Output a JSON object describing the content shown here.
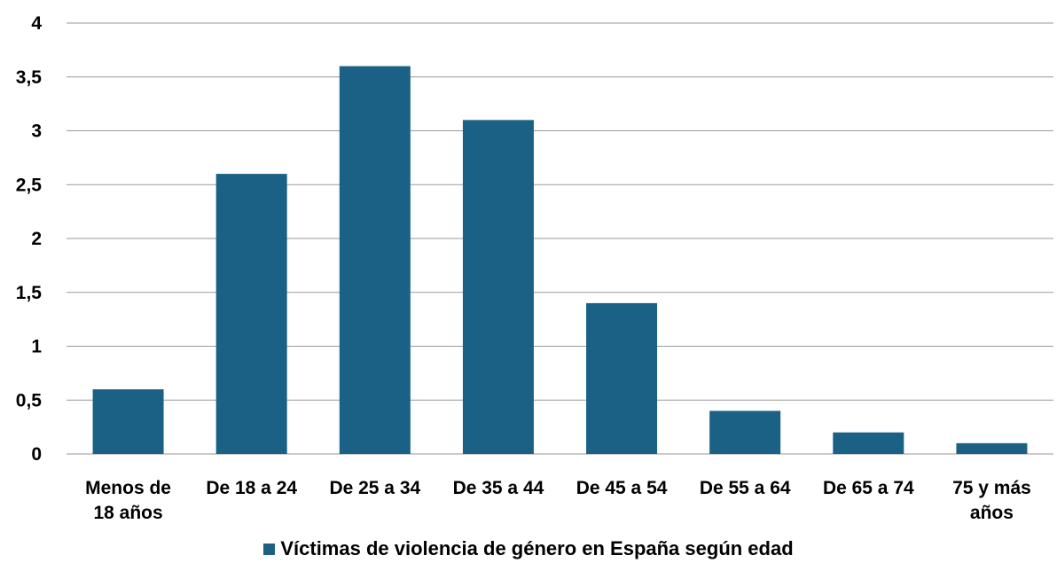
{
  "chart_data": {
    "type": "bar",
    "categories": [
      [
        "Menos de",
        "18 años"
      ],
      [
        "De 18 a 24"
      ],
      [
        "De 25 a 34"
      ],
      [
        "De 35 a 44"
      ],
      [
        "De 45 a 54"
      ],
      [
        "De 55 a 64"
      ],
      [
        "De 65 a 74"
      ],
      [
        "75 y más",
        "años"
      ]
    ],
    "series": [
      {
        "name": "Víctimas de violencia de género en España según edad",
        "values": [
          0.6,
          2.6,
          3.6,
          3.1,
          1.4,
          0.4,
          0.2,
          0.1
        ],
        "color": "#1b6185"
      }
    ],
    "yticks": [
      "0",
      "0,5",
      "1",
      "1,5",
      "2",
      "2,5",
      "3",
      "3,5",
      "4"
    ],
    "ylim": [
      0,
      4
    ],
    "grid": true,
    "legend_position": "bottom",
    "gridline_color": "#9a9a9a"
  }
}
